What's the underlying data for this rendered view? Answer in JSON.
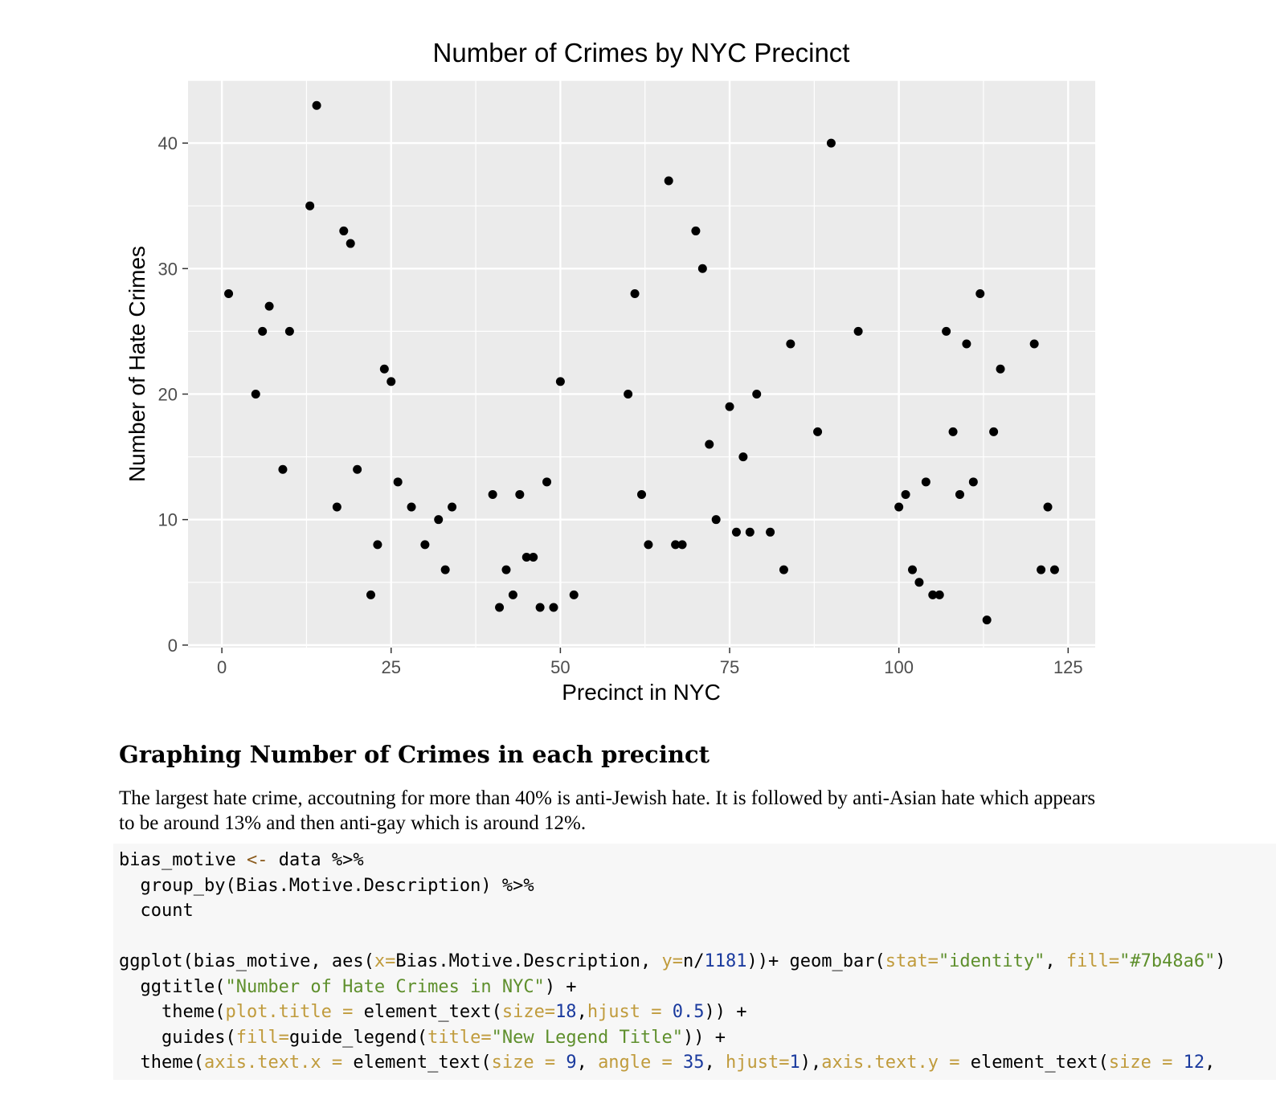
{
  "chart_data": {
    "type": "scatter",
    "title": "Number of Crimes by NYC Precinct",
    "xlabel": "Precinct in NYC",
    "ylabel": "Number of Hate Crimes",
    "xlim": [
      -5,
      129
    ],
    "ylim": [
      -0.2,
      45
    ],
    "x_ticks": [
      0,
      25,
      50,
      75,
      100,
      125
    ],
    "y_ticks": [
      0,
      10,
      20,
      30,
      40
    ],
    "grid": true,
    "colors": {
      "panel": "#ebebeb",
      "grid": "#ffffff",
      "point": "#000000",
      "axis_text": "#4d4d4d"
    },
    "points": [
      [
        1,
        28
      ],
      [
        5,
        20
      ],
      [
        6,
        25
      ],
      [
        7,
        27
      ],
      [
        9,
        14
      ],
      [
        10,
        25
      ],
      [
        13,
        35
      ],
      [
        14,
        43
      ],
      [
        17,
        11
      ],
      [
        18,
        33
      ],
      [
        19,
        32
      ],
      [
        20,
        14
      ],
      [
        22,
        4
      ],
      [
        23,
        8
      ],
      [
        24,
        22
      ],
      [
        25,
        21
      ],
      [
        26,
        13
      ],
      [
        28,
        11
      ],
      [
        30,
        8
      ],
      [
        32,
        10
      ],
      [
        33,
        6
      ],
      [
        34,
        11
      ],
      [
        40,
        12
      ],
      [
        41,
        3
      ],
      [
        42,
        6
      ],
      [
        43,
        4
      ],
      [
        44,
        12
      ],
      [
        45,
        7
      ],
      [
        46,
        7
      ],
      [
        47,
        3
      ],
      [
        48,
        13
      ],
      [
        49,
        3
      ],
      [
        50,
        21
      ],
      [
        52,
        4
      ],
      [
        60,
        20
      ],
      [
        61,
        28
      ],
      [
        62,
        12
      ],
      [
        63,
        8
      ],
      [
        66,
        37
      ],
      [
        67,
        8
      ],
      [
        68,
        8
      ],
      [
        70,
        33
      ],
      [
        71,
        30
      ],
      [
        72,
        16
      ],
      [
        73,
        10
      ],
      [
        75,
        19
      ],
      [
        76,
        9
      ],
      [
        77,
        15
      ],
      [
        78,
        9
      ],
      [
        79,
        20
      ],
      [
        81,
        9
      ],
      [
        83,
        6
      ],
      [
        84,
        24
      ],
      [
        88,
        17
      ],
      [
        90,
        40
      ],
      [
        94,
        25
      ],
      [
        100,
        11
      ],
      [
        101,
        12
      ],
      [
        102,
        6
      ],
      [
        103,
        5
      ],
      [
        104,
        13
      ],
      [
        105,
        4
      ],
      [
        106,
        4
      ],
      [
        107,
        25
      ],
      [
        108,
        17
      ],
      [
        109,
        12
      ],
      [
        110,
        24
      ],
      [
        111,
        13
      ],
      [
        112,
        28
      ],
      [
        113,
        2
      ],
      [
        114,
        17
      ],
      [
        115,
        22
      ],
      [
        120,
        24
      ],
      [
        121,
        6
      ],
      [
        122,
        11
      ],
      [
        123,
        6
      ]
    ]
  },
  "section": {
    "heading": "Graphing Number of Crimes in each precinct",
    "paragraph": "The largest hate crime, accoutning for more than 40% is anti-Jewish hate. It is followed by anti-Asian hate which appears to be around 13% and then anti-gay which is around 12%."
  },
  "code": {
    "lines": [
      [
        [
          "bias_motive ",
          "default"
        ],
        [
          "<-",
          "op"
        ],
        [
          " data %>%",
          "default"
        ]
      ],
      [
        [
          "  group_by(Bias.Motive.Description) %>%",
          "default"
        ]
      ],
      [
        [
          "  count",
          "default"
        ]
      ],
      [],
      [
        [
          "ggplot(bias_motive, aes(",
          "default"
        ],
        [
          "x=",
          "arg"
        ],
        [
          "Bias.Motive.Description, ",
          "default"
        ],
        [
          "y=",
          "arg"
        ],
        [
          "n/",
          "default"
        ],
        [
          "1181",
          "num"
        ],
        [
          "))+ geom_bar(",
          "default"
        ],
        [
          "stat=",
          "arg"
        ],
        [
          "\"identity\"",
          "str"
        ],
        [
          ", ",
          "default"
        ],
        [
          "fill=",
          "arg"
        ],
        [
          "\"#7b48a6\"",
          "str"
        ],
        [
          ")",
          "default"
        ]
      ],
      [
        [
          "  ggtitle(",
          "default"
        ],
        [
          "\"Number of Hate Crimes in NYC\"",
          "str"
        ],
        [
          ") +",
          "default"
        ]
      ],
      [
        [
          "    theme(",
          "default"
        ],
        [
          "plot.title = ",
          "arg"
        ],
        [
          "element_text(",
          "default"
        ],
        [
          "size=",
          "arg"
        ],
        [
          "18",
          "num"
        ],
        [
          ",",
          "default"
        ],
        [
          "hjust = ",
          "arg"
        ],
        [
          "0.5",
          "num"
        ],
        [
          ")) +",
          "default"
        ]
      ],
      [
        [
          "    guides(",
          "default"
        ],
        [
          "fill=",
          "arg"
        ],
        [
          "guide_legend(",
          "default"
        ],
        [
          "title=",
          "arg"
        ],
        [
          "\"New Legend Title\"",
          "str"
        ],
        [
          ")) +",
          "default"
        ]
      ],
      [
        [
          "  theme(",
          "default"
        ],
        [
          "axis.text.x = ",
          "arg"
        ],
        [
          "element_text(",
          "default"
        ],
        [
          "size = ",
          "arg"
        ],
        [
          "9",
          "num"
        ],
        [
          ", ",
          "default"
        ],
        [
          "angle = ",
          "arg"
        ],
        [
          "35",
          "num"
        ],
        [
          ", ",
          "default"
        ],
        [
          "hjust=",
          "arg"
        ],
        [
          "1",
          "num"
        ],
        [
          "),",
          "default"
        ],
        [
          "axis.text.y = ",
          "arg"
        ],
        [
          "element_text(",
          "default"
        ],
        [
          "size = ",
          "arg"
        ],
        [
          "12",
          "num"
        ],
        [
          ",",
          "default"
        ]
      ]
    ]
  }
}
